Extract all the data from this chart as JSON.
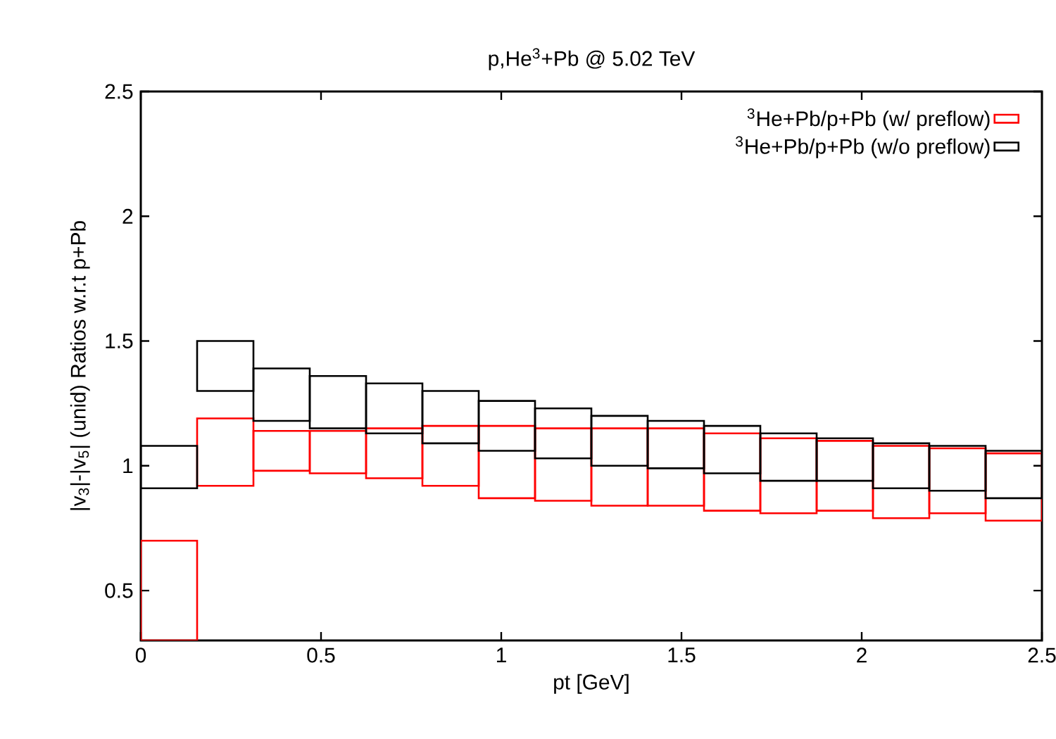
{
  "chart_data": {
    "type": "bar",
    "title": "p,He$^{3}$+Pb @ 5.02 TeV",
    "xlabel": "pt [GeV]",
    "ylabel": "|v$_{3}$|-|v$_{5}$| (unid) Ratios w.r.t p+Pb",
    "x": [
      0.078125,
      0.234375,
      0.390625,
      0.546875,
      0.703125,
      0.859375,
      1.015625,
      1.171875,
      1.328125,
      1.484375,
      1.640625,
      1.796875,
      1.953125,
      2.109375,
      2.265625,
      2.421875
    ],
    "xlim": [
      0,
      2.5
    ],
    "xticks": [
      0,
      0.5,
      1,
      1.5,
      2,
      2.5
    ],
    "ylim": [
      0.3,
      2.5
    ],
    "yticks": [
      0.5,
      1,
      1.5,
      2,
      2.5
    ],
    "legend": "top right",
    "series": [
      {
        "name": "$^{3}$He+Pb/p+Pb (w/ preflow)",
        "color": "#ff0000",
        "base": [
          0.3,
          0.92,
          0.98,
          0.97,
          0.95,
          0.92,
          0.87,
          0.86,
          0.84,
          0.84,
          0.82,
          0.81,
          0.82,
          0.79,
          0.81,
          0.78
        ],
        "values": [
          0.4,
          0.27,
          0.16,
          0.17,
          0.2,
          0.24,
          0.29,
          0.29,
          0.31,
          0.31,
          0.31,
          0.3,
          0.28,
          0.29,
          0.26,
          0.27
        ]
      },
      {
        "name": "$^{3}$He+Pb/p+Pb (w/o preflow)",
        "color": "#000000",
        "base": [
          0.91,
          1.3,
          1.18,
          1.15,
          1.13,
          1.09,
          1.06,
          1.03,
          1.0,
          0.99,
          0.97,
          0.94,
          0.94,
          0.91,
          0.9,
          0.87
        ],
        "values": [
          0.17,
          0.2,
          0.21,
          0.21,
          0.2,
          0.21,
          0.2,
          0.2,
          0.2,
          0.19,
          0.19,
          0.19,
          0.17,
          0.18,
          0.18,
          0.19
        ]
      }
    ]
  }
}
